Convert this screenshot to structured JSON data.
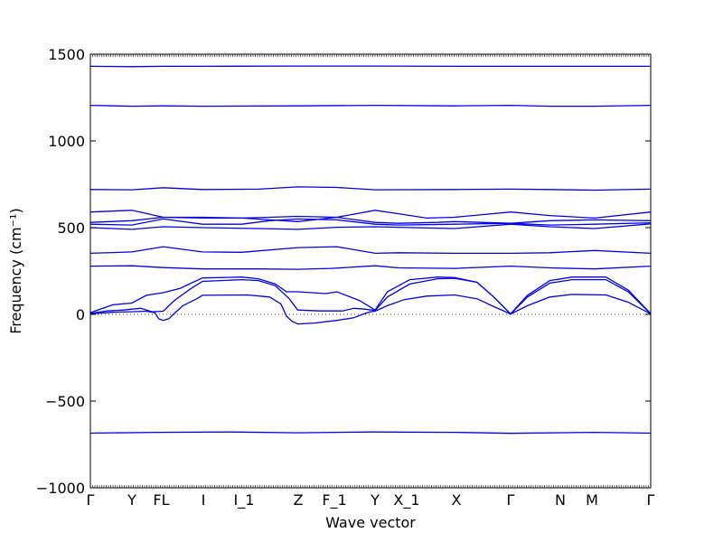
{
  "chart_data": {
    "type": "line",
    "title": "",
    "xlabel": "Wave vector",
    "ylabel": "Frequency (cm⁻¹)",
    "ylim": [
      -1000,
      1500
    ],
    "yticks": [
      -1000,
      -500,
      0,
      500,
      1000,
      1500
    ],
    "grid": false,
    "zero_line": "dotted",
    "line_color": "#0000ee",
    "high_symmetry_points": [
      {
        "label": "Γ",
        "x": 0.0
      },
      {
        "label": "Y",
        "x": 0.0742
      },
      {
        "label": "F",
        "x": 0.1226
      },
      {
        "label": "L",
        "x": 0.1323
      },
      {
        "label": "I",
        "x": 0.2016
      },
      {
        "label": "I_1",
        "x": 0.2742
      },
      {
        "label": "Z",
        "x": 0.371
      },
      {
        "label": "F_1",
        "x": 0.4355
      },
      {
        "label": "Y",
        "x": 0.5081
      },
      {
        "label": "X_1",
        "x": 0.5645
      },
      {
        "label": "X",
        "x": 0.6532
      },
      {
        "label": "Γ",
        "x": 0.75
      },
      {
        "label": "N",
        "x": 0.8387
      },
      {
        "label": "M",
        "x": 0.8952
      },
      {
        "label": "Γ",
        "x": 1.0
      }
    ],
    "series": [
      {
        "values": [
          [
            0,
            -685
          ],
          [
            0.12,
            -680
          ],
          [
            0.25,
            -678
          ],
          [
            0.37,
            -683
          ],
          [
            0.5,
            -678
          ],
          [
            0.65,
            -680
          ],
          [
            0.75,
            -686
          ],
          [
            0.9,
            -680
          ],
          [
            1.0,
            -685
          ]
        ]
      },
      {
        "values": [
          [
            0,
            3
          ],
          [
            0.04,
            12
          ],
          [
            0.074,
            15
          ],
          [
            0.1,
            18
          ],
          [
            0.115,
            10
          ],
          [
            0.122,
            -25
          ],
          [
            0.13,
            -35
          ],
          [
            0.14,
            -25
          ],
          [
            0.15,
            5
          ],
          [
            0.165,
            50
          ],
          [
            0.19,
            90
          ],
          [
            0.2,
            110
          ],
          [
            0.28,
            112
          ],
          [
            0.32,
            100
          ],
          [
            0.34,
            60
          ],
          [
            0.35,
            -10
          ],
          [
            0.36,
            -40
          ],
          [
            0.37,
            -55
          ],
          [
            0.4,
            -50
          ],
          [
            0.44,
            -35
          ],
          [
            0.47,
            -20
          ],
          [
            0.49,
            5
          ],
          [
            0.5,
            15
          ],
          [
            0.508,
            18
          ],
          [
            0.53,
            50
          ],
          [
            0.56,
            85
          ],
          [
            0.6,
            105
          ],
          [
            0.65,
            112
          ],
          [
            0.69,
            90
          ],
          [
            0.72,
            45
          ],
          [
            0.75,
            2
          ],
          [
            0.78,
            50
          ],
          [
            0.82,
            100
          ],
          [
            0.86,
            115
          ],
          [
            0.92,
            112
          ],
          [
            0.96,
            70
          ],
          [
            1.0,
            2
          ]
        ]
      },
      {
        "values": [
          [
            0,
            5
          ],
          [
            0.03,
            20
          ],
          [
            0.06,
            25
          ],
          [
            0.074,
            30
          ],
          [
            0.09,
            35
          ],
          [
            0.11,
            15
          ],
          [
            0.13,
            18
          ],
          [
            0.15,
            80
          ],
          [
            0.18,
            150
          ],
          [
            0.2,
            190
          ],
          [
            0.27,
            200
          ],
          [
            0.3,
            195
          ],
          [
            0.33,
            165
          ],
          [
            0.355,
            90
          ],
          [
            0.37,
            25
          ],
          [
            0.41,
            20
          ],
          [
            0.45,
            20
          ],
          [
            0.47,
            35
          ],
          [
            0.49,
            30
          ],
          [
            0.508,
            22
          ],
          [
            0.53,
            100
          ],
          [
            0.57,
            175
          ],
          [
            0.62,
            205
          ],
          [
            0.65,
            208
          ],
          [
            0.69,
            185
          ],
          [
            0.72,
            100
          ],
          [
            0.75,
            2
          ],
          [
            0.78,
            100
          ],
          [
            0.82,
            180
          ],
          [
            0.86,
            200
          ],
          [
            0.92,
            200
          ],
          [
            0.96,
            130
          ],
          [
            1.0,
            3
          ]
        ]
      },
      {
        "values": [
          [
            0,
            10
          ],
          [
            0.04,
            55
          ],
          [
            0.074,
            65
          ],
          [
            0.1,
            110
          ],
          [
            0.13,
            125
          ],
          [
            0.16,
            150
          ],
          [
            0.2,
            210
          ],
          [
            0.27,
            215
          ],
          [
            0.3,
            205
          ],
          [
            0.33,
            175
          ],
          [
            0.35,
            130
          ],
          [
            0.37,
            130
          ],
          [
            0.42,
            120
          ],
          [
            0.44,
            130
          ],
          [
            0.48,
            80
          ],
          [
            0.508,
            25
          ],
          [
            0.53,
            130
          ],
          [
            0.57,
            200
          ],
          [
            0.62,
            215
          ],
          [
            0.65,
            212
          ],
          [
            0.69,
            185
          ],
          [
            0.72,
            100
          ],
          [
            0.75,
            3
          ],
          [
            0.78,
            110
          ],
          [
            0.82,
            195
          ],
          [
            0.86,
            215
          ],
          [
            0.92,
            215
          ],
          [
            0.96,
            140
          ],
          [
            1.0,
            4
          ]
        ]
      },
      {
        "values": [
          [
            0,
            278
          ],
          [
            0.074,
            280
          ],
          [
            0.13,
            270
          ],
          [
            0.2,
            262
          ],
          [
            0.3,
            262
          ],
          [
            0.37,
            260
          ],
          [
            0.43,
            265
          ],
          [
            0.508,
            280
          ],
          [
            0.55,
            268
          ],
          [
            0.65,
            265
          ],
          [
            0.75,
            278
          ],
          [
            0.82,
            268
          ],
          [
            0.9,
            262
          ],
          [
            1.0,
            278
          ]
        ]
      },
      {
        "values": [
          [
            0,
            352
          ],
          [
            0.074,
            360
          ],
          [
            0.13,
            390
          ],
          [
            0.2,
            360
          ],
          [
            0.27,
            358
          ],
          [
            0.37,
            385
          ],
          [
            0.44,
            390
          ],
          [
            0.508,
            352
          ],
          [
            0.55,
            355
          ],
          [
            0.65,
            352
          ],
          [
            0.75,
            352
          ],
          [
            0.82,
            355
          ],
          [
            0.9,
            368
          ],
          [
            1.0,
            352
          ]
        ]
      },
      {
        "values": [
          [
            0,
            500
          ],
          [
            0.074,
            490
          ],
          [
            0.13,
            505
          ],
          [
            0.2,
            500
          ],
          [
            0.3,
            495
          ],
          [
            0.37,
            490
          ],
          [
            0.44,
            502
          ],
          [
            0.508,
            505
          ],
          [
            0.55,
            502
          ],
          [
            0.65,
            495
          ],
          [
            0.75,
            520
          ],
          [
            0.82,
            505
          ],
          [
            0.9,
            495
          ],
          [
            1.0,
            522
          ]
        ]
      },
      {
        "values": [
          [
            0,
            520
          ],
          [
            0.074,
            515
          ],
          [
            0.13,
            550
          ],
          [
            0.2,
            520
          ],
          [
            0.27,
            520
          ],
          [
            0.32,
            540
          ],
          [
            0.37,
            550
          ],
          [
            0.44,
            545
          ],
          [
            0.508,
            520
          ],
          [
            0.55,
            515
          ],
          [
            0.65,
            520
          ],
          [
            0.75,
            525
          ],
          [
            0.82,
            515
          ],
          [
            0.9,
            520
          ],
          [
            1.0,
            528
          ]
        ]
      },
      {
        "values": [
          [
            0,
            530
          ],
          [
            0.074,
            540
          ],
          [
            0.13,
            560
          ],
          [
            0.2,
            560
          ],
          [
            0.27,
            555
          ],
          [
            0.32,
            545
          ],
          [
            0.37,
            535
          ],
          [
            0.44,
            560
          ],
          [
            0.508,
            530
          ],
          [
            0.55,
            525
          ],
          [
            0.62,
            530
          ],
          [
            0.65,
            535
          ],
          [
            0.75,
            525
          ],
          [
            0.82,
            540
          ],
          [
            0.9,
            545
          ],
          [
            1.0,
            540
          ]
        ]
      },
      {
        "values": [
          [
            0,
            590
          ],
          [
            0.074,
            600
          ],
          [
            0.13,
            560
          ],
          [
            0.2,
            555
          ],
          [
            0.27,
            555
          ],
          [
            0.32,
            560
          ],
          [
            0.37,
            565
          ],
          [
            0.44,
            560
          ],
          [
            0.508,
            600
          ],
          [
            0.55,
            580
          ],
          [
            0.6,
            555
          ],
          [
            0.65,
            560
          ],
          [
            0.7,
            575
          ],
          [
            0.75,
            590
          ],
          [
            0.82,
            570
          ],
          [
            0.9,
            555
          ],
          [
            1.0,
            590
          ]
        ]
      },
      {
        "values": [
          [
            0,
            720
          ],
          [
            0.074,
            718
          ],
          [
            0.13,
            730
          ],
          [
            0.2,
            720
          ],
          [
            0.3,
            722
          ],
          [
            0.37,
            735
          ],
          [
            0.44,
            732
          ],
          [
            0.508,
            718
          ],
          [
            0.65,
            720
          ],
          [
            0.75,
            722
          ],
          [
            0.82,
            720
          ],
          [
            0.9,
            716
          ],
          [
            1.0,
            722
          ]
        ]
      },
      {
        "values": [
          [
            0,
            1205
          ],
          [
            0.074,
            1200
          ],
          [
            0.13,
            1202
          ],
          [
            0.2,
            1200
          ],
          [
            0.37,
            1202
          ],
          [
            0.508,
            1205
          ],
          [
            0.65,
            1202
          ],
          [
            0.75,
            1205
          ],
          [
            0.82,
            1200
          ],
          [
            0.9,
            1200
          ],
          [
            1.0,
            1205
          ]
        ]
      },
      {
        "values": [
          [
            0,
            1430
          ],
          [
            0.074,
            1428
          ],
          [
            0.13,
            1430
          ],
          [
            0.2,
            1430
          ],
          [
            0.37,
            1432
          ],
          [
            0.508,
            1432
          ],
          [
            0.65,
            1430
          ],
          [
            0.75,
            1430
          ],
          [
            0.9,
            1430
          ],
          [
            1.0,
            1430
          ]
        ]
      }
    ]
  }
}
